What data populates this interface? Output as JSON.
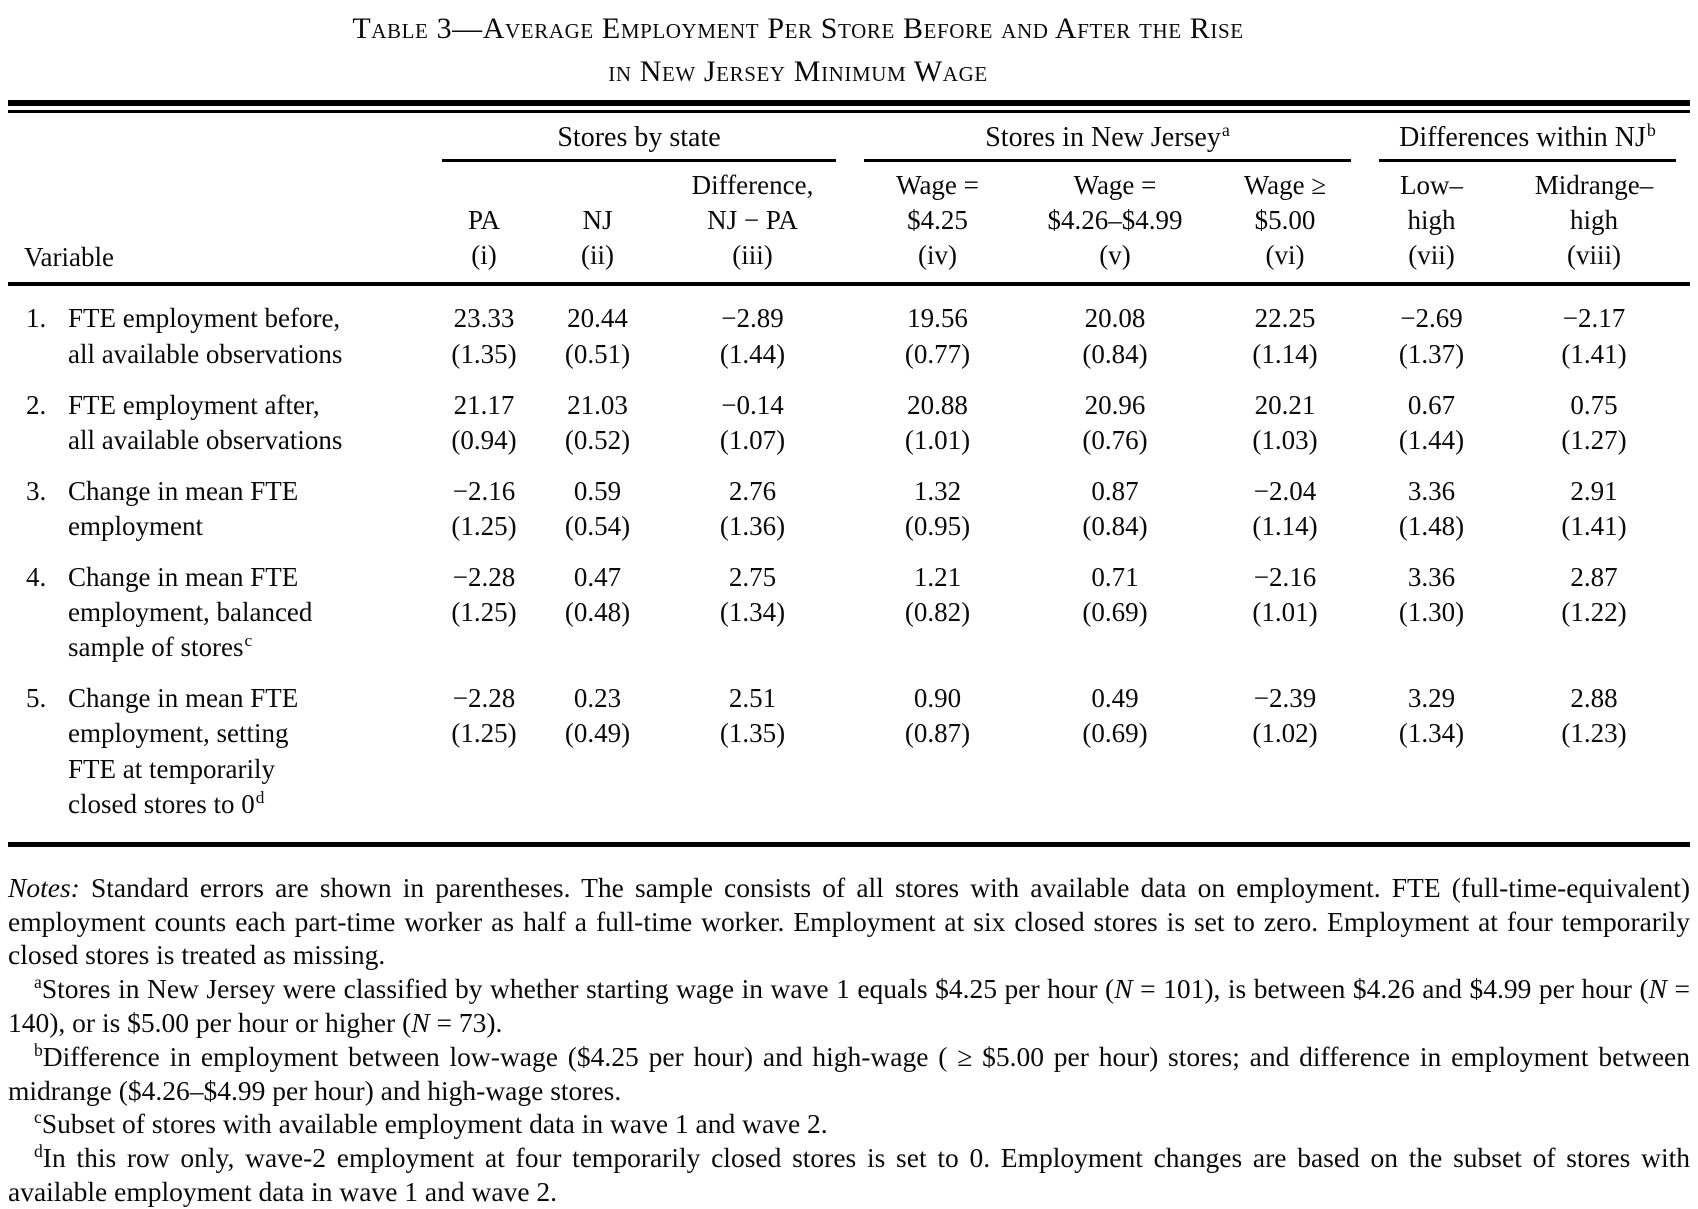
{
  "title": {
    "line1": "Table 3—Average Employment Per Store Before and After the Rise",
    "line2": "in New Jersey Minimum Wage"
  },
  "table": {
    "variable_header": "Variable",
    "groups": [
      {
        "label": "Stores by state",
        "sup": "",
        "span": 3
      },
      {
        "label": "Stores in New Jersey",
        "sup": "a",
        "span": 3
      },
      {
        "label": "Differences within NJ",
        "sup": "b",
        "span": 2
      }
    ],
    "columns": [
      {
        "lines": [
          "PA",
          "(i)"
        ]
      },
      {
        "lines": [
          "NJ",
          "(ii)"
        ]
      },
      {
        "lines": [
          "Difference,",
          "NJ − PA",
          "(iii)"
        ]
      },
      {
        "lines": [
          "Wage =",
          "$4.25",
          "(iv)"
        ]
      },
      {
        "lines": [
          "Wage =",
          "$4.26–$4.99",
          "(v)"
        ]
      },
      {
        "lines": [
          "Wage ≥",
          "$5.00",
          "(vi)"
        ]
      },
      {
        "lines": [
          "Low–",
          "high",
          "(vii)"
        ]
      },
      {
        "lines": [
          "Midrange–",
          "high",
          "(viii)"
        ]
      }
    ],
    "rows": [
      {
        "number": "1.",
        "label_lines": [
          "FTE employment before,",
          "all available observations"
        ],
        "label_sup": "",
        "values": [
          "23.33",
          "20.44",
          "−2.89",
          "19.56",
          "20.08",
          "22.25",
          "−2.69",
          "−2.17"
        ],
        "ses": [
          "(1.35)",
          "(0.51)",
          "(1.44)",
          "(0.77)",
          "(0.84)",
          "(1.14)",
          "(1.37)",
          "(1.41)"
        ]
      },
      {
        "number": "2.",
        "label_lines": [
          "FTE employment after,",
          "all available observations"
        ],
        "label_sup": "",
        "values": [
          "21.17",
          "21.03",
          "−0.14",
          "20.88",
          "20.96",
          "20.21",
          "0.67",
          "0.75"
        ],
        "ses": [
          "(0.94)",
          "(0.52)",
          "(1.07)",
          "(1.01)",
          "(0.76)",
          "(1.03)",
          "(1.44)",
          "(1.27)"
        ]
      },
      {
        "number": "3.",
        "label_lines": [
          "Change in mean FTE",
          "employment"
        ],
        "label_sup": "",
        "values": [
          "−2.16",
          "0.59",
          "2.76",
          "1.32",
          "0.87",
          "−2.04",
          "3.36",
          "2.91"
        ],
        "ses": [
          "(1.25)",
          "(0.54)",
          "(1.36)",
          "(0.95)",
          "(0.84)",
          "(1.14)",
          "(1.48)",
          "(1.41)"
        ]
      },
      {
        "number": "4.",
        "label_lines": [
          "Change in mean FTE",
          "employment, balanced",
          "sample of stores"
        ],
        "label_sup": "c",
        "values": [
          "−2.28",
          "0.47",
          "2.75",
          "1.21",
          "0.71",
          "−2.16",
          "3.36",
          "2.87"
        ],
        "ses": [
          "(1.25)",
          "(0.48)",
          "(1.34)",
          "(0.82)",
          "(0.69)",
          "(1.01)",
          "(1.30)",
          "(1.22)"
        ]
      },
      {
        "number": "5.",
        "label_lines": [
          "Change in mean FTE",
          "employment, setting",
          "FTE at temporarily",
          "closed stores to 0"
        ],
        "label_sup": "d",
        "values": [
          "−2.28",
          "0.23",
          "2.51",
          "0.90",
          "0.49",
          "−2.39",
          "3.29",
          "2.88"
        ],
        "ses": [
          "(1.25)",
          "(0.49)",
          "(1.35)",
          "(0.87)",
          "(0.69)",
          "(1.02)",
          "(1.34)",
          "(1.23)"
        ]
      }
    ]
  },
  "notes": [
    {
      "sup": "",
      "indent": false,
      "segments": [
        {
          "text": "Notes:",
          "italic": true
        },
        {
          "text": " Standard errors are shown in parentheses. The sample consists of all stores with available data on employment. FTE (full-time-equivalent) employment counts each part-time worker as half a full-time worker. Employment at six closed stores is set to zero. Employment at four temporarily closed stores is treated as missing.",
          "italic": false
        }
      ]
    },
    {
      "sup": "a",
      "indent": true,
      "segments": [
        {
          "text": "Stores in New Jersey were classified by whether starting wage in wave 1 equals $4.25 per hour (",
          "italic": false
        },
        {
          "text": "N",
          "italic": true
        },
        {
          "text": " = 101), is between $4.26 and $4.99 per hour (",
          "italic": false
        },
        {
          "text": "N",
          "italic": true
        },
        {
          "text": " = 140), or is $5.00 per hour or higher (",
          "italic": false
        },
        {
          "text": "N",
          "italic": true
        },
        {
          "text": " = 73).",
          "italic": false
        }
      ]
    },
    {
      "sup": "b",
      "indent": true,
      "segments": [
        {
          "text": "Difference in employment between low-wage ($4.25 per hour) and high-wage ( ≥ $5.00 per hour) stores; and difference in employment between midrange ($4.26–$4.99 per hour) and high-wage stores.",
          "italic": false
        }
      ]
    },
    {
      "sup": "c",
      "indent": true,
      "segments": [
        {
          "text": "Subset of stores with available employment data in wave 1 and wave 2.",
          "italic": false
        }
      ]
    },
    {
      "sup": "d",
      "indent": true,
      "segments": [
        {
          "text": "In this row only, wave-2 employment at four temporarily closed stores is set to 0. Employment changes are based on the subset of stores with available employment data in wave 1 and wave 2.",
          "italic": false
        }
      ]
    }
  ]
}
